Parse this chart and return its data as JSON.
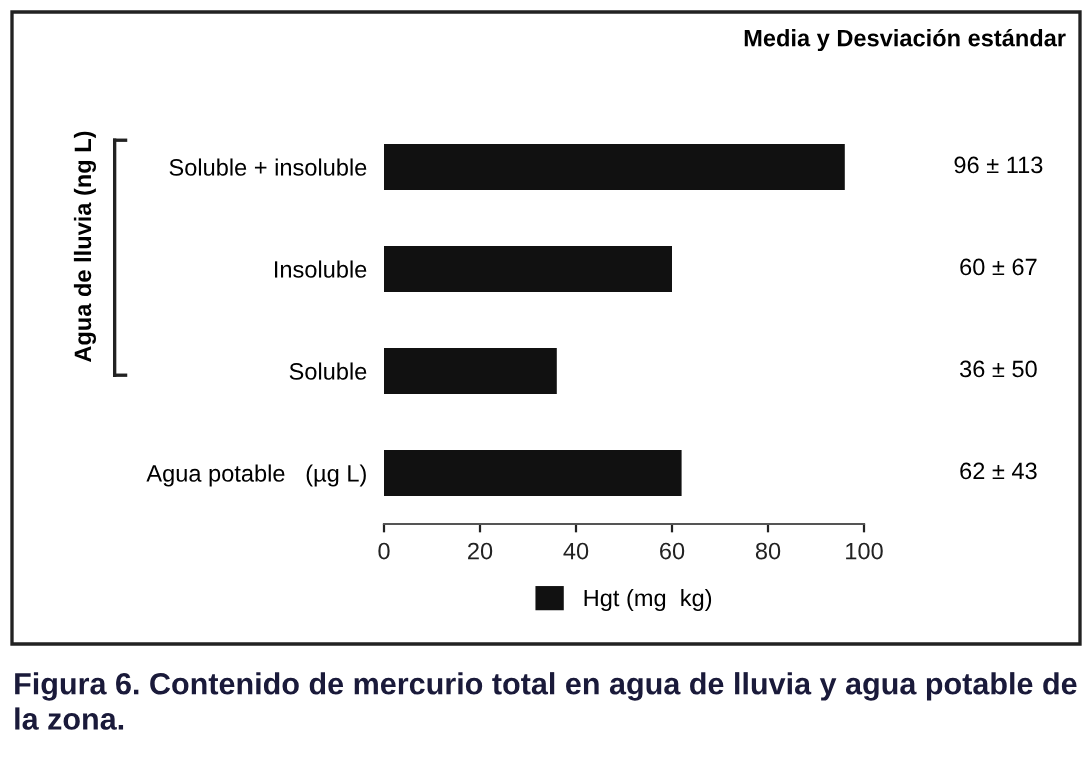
{
  "chart_data": {
    "type": "bar",
    "orientation": "horizontal",
    "categories": [
      "Soluble + insoluble",
      "Insoluble",
      "Soluble",
      "Agua potable   (µg L)"
    ],
    "series": [
      {
        "name": "Hgt (mg  kg)",
        "color": "#111111",
        "values": [
          96,
          60,
          36,
          62
        ],
        "value_labels": [
          "96 ± 113",
          "60 ± 67",
          "36 ± 50",
          "62 ± 43"
        ]
      }
    ],
    "ylabel": "Agua de lluvia (ng L)",
    "xlim": [
      0,
      100
    ],
    "xticks": [
      0,
      20,
      40,
      60,
      80,
      100
    ],
    "legend": "bottom",
    "grid": false,
    "annotations": [
      "Media y Desviación estándar",
      "Figura 6. Contenido de mercurio total en agua de lluvia y agua potable de la zona."
    ]
  }
}
